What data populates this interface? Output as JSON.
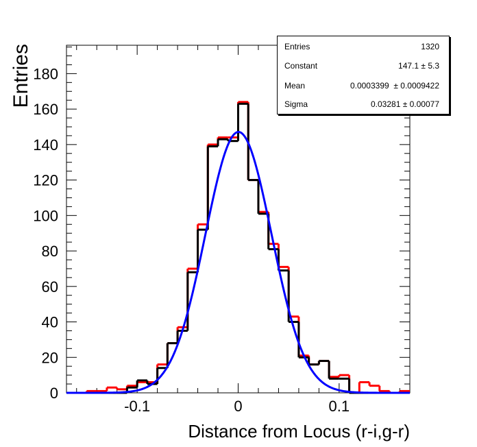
{
  "chart_data": {
    "type": "bar",
    "subtype": "histogram",
    "title": "",
    "xlabel": "Distance from Locus (r-i,g-r)",
    "ylabel": "Entries",
    "xlim": [
      -0.17,
      0.17
    ],
    "ylim": [
      0,
      196
    ],
    "bin_width": 0.01,
    "x_ticks": [
      -0.1,
      0,
      0.1
    ],
    "x_tick_labels": [
      "-0.1",
      "0",
      "0.1"
    ],
    "y_ticks": [
      0,
      20,
      40,
      60,
      80,
      100,
      120,
      140,
      160,
      180
    ],
    "y_tick_labels": [
      "0",
      "20",
      "40",
      "60",
      "80",
      "100",
      "120",
      "140",
      "160",
      "180"
    ],
    "grid": false,
    "series": [
      {
        "name": "histogram-red",
        "color": "#ff0000",
        "values": [
          0,
          0,
          1,
          1,
          3,
          2,
          4,
          6,
          6,
          16,
          28,
          37,
          70,
          95,
          140,
          144,
          144,
          164,
          120,
          102,
          84,
          71,
          43,
          21,
          16,
          18,
          9,
          10,
          0,
          6,
          4,
          1,
          0,
          1
        ]
      },
      {
        "name": "histogram-black",
        "color": "#000000",
        "values": [
          0,
          0,
          0,
          0,
          0,
          0,
          3,
          7,
          5,
          14,
          28,
          35,
          68,
          92,
          139,
          143,
          142,
          163,
          120,
          101,
          81,
          69,
          40,
          20,
          16,
          18,
          8,
          8,
          0,
          0,
          0,
          0,
          0,
          0
        ]
      }
    ],
    "fit": {
      "name": "gaussian-fit",
      "type": "gaus",
      "color": "#0000ff",
      "constant": 147.1,
      "mean": 0.0003399,
      "sigma": 0.03281
    },
    "legend": {
      "placement": "top-right",
      "rows": [
        {
          "label": "Entries",
          "value": "1320"
        },
        {
          "label": "Constant",
          "value": "147.1 ± 5.3"
        },
        {
          "label": "Mean",
          "value": "0.0003399  ± 0.0009422"
        },
        {
          "label": "Sigma",
          "value": "0.03281 ± 0.00077"
        }
      ]
    }
  }
}
